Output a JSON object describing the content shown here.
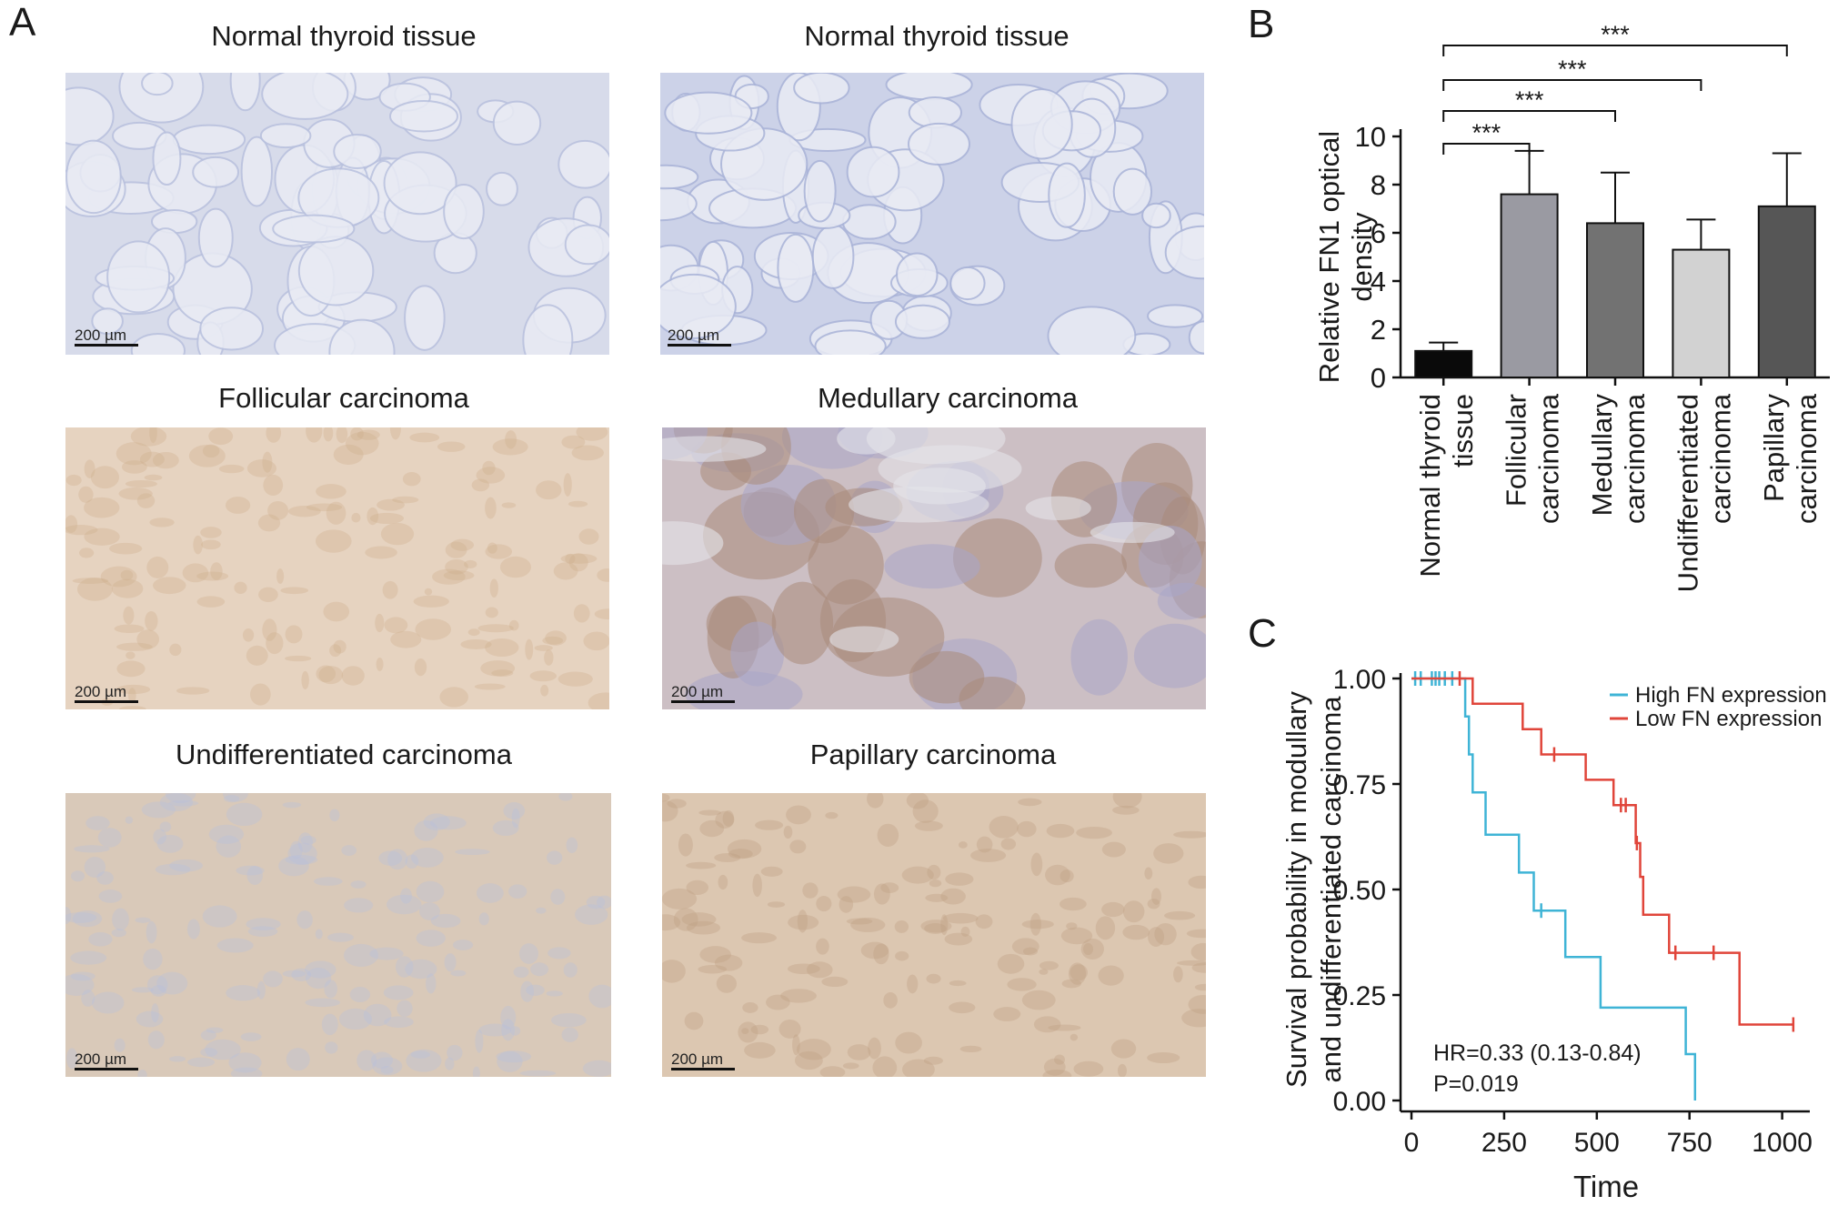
{
  "panel_labels": {
    "a": "A",
    "b": "B",
    "c": "C"
  },
  "micrographs": [
    {
      "id": "n1",
      "title": "Normal thyroid tissue",
      "scale": "200 µm",
      "stain": "#d7dbea",
      "accent": "#b9c1de",
      "pattern": "follicles"
    },
    {
      "id": "n2",
      "title": "Normal thyroid tissue",
      "scale": "200 µm",
      "stain": "#ccd2e8",
      "accent": "#aab4d8",
      "pattern": "follicles"
    },
    {
      "id": "fc",
      "title": "Follicular carcinoma",
      "scale": "200 µm",
      "stain": "#e6d3c0",
      "accent": "#cfae8c",
      "pattern": "diffuse"
    },
    {
      "id": "mc",
      "title": "Medullary carcinoma",
      "scale": "200 µm",
      "stain": "#ccbfc4",
      "accent": "#a98a7a",
      "pattern": "nests"
    },
    {
      "id": "uc",
      "title": "Undifferentiated carcinoma",
      "scale": "200 µm",
      "stain": "#d9c9b9",
      "accent": "#b8c0de",
      "pattern": "diffuse"
    },
    {
      "id": "pc",
      "title": "Papillary carcinoma",
      "scale": "200 µm",
      "stain": "#dcc7b1",
      "accent": "#bd9e80",
      "pattern": "diffuse"
    }
  ],
  "chart_data": [
    {
      "type": "bar",
      "title": "",
      "xlabel": "",
      "ylabel": "Relative FN1 optical density",
      "ylim": [
        0,
        10
      ],
      "yticks": [
        0,
        2,
        4,
        6,
        8,
        10
      ],
      "categories": [
        "Normal thyroid tissue",
        "Follicular carcinoma",
        "Medullary carcinoma",
        "Undifferentiated carcinoma",
        "Papillary carcinoma"
      ],
      "category_lines": [
        [
          "Normal thyroid",
          "tissue"
        ],
        [
          "Follicular",
          "carcinoma"
        ],
        [
          "Medullary",
          "carcinoma"
        ],
        [
          "Undifferentiated",
          "carcinoma"
        ],
        [
          "Papillary",
          "carcinoma"
        ]
      ],
      "values": [
        1.1,
        7.6,
        6.4,
        5.3,
        7.1
      ],
      "errors": [
        0.35,
        1.8,
        2.1,
        1.25,
        2.2
      ],
      "colors": [
        "#0a0a0a",
        "#9a9aa2",
        "#727272",
        "#d2d2d2",
        "#565656"
      ],
      "significance": [
        {
          "from": 0,
          "to": 1,
          "label": "***"
        },
        {
          "from": 0,
          "to": 2,
          "label": "***"
        },
        {
          "from": 0,
          "to": 3,
          "label": "***"
        },
        {
          "from": 0,
          "to": 4,
          "label": "***"
        }
      ],
      "grid": false
    },
    {
      "type": "line",
      "subtype": "kaplan-meier",
      "title": "",
      "xlabel": "Time",
      "ylabel": [
        "Survival probability in modullary",
        "and undifferentiated carcinoma"
      ],
      "xlim": [
        0,
        1050
      ],
      "ylim": [
        0,
        1
      ],
      "xticks": [
        0,
        250,
        500,
        750,
        1000
      ],
      "yticks": [
        0.0,
        0.25,
        0.5,
        0.75,
        1.0
      ],
      "ytick_labels": [
        "0.00",
        "0.25",
        "0.50",
        "0.75",
        "1.00"
      ],
      "legend_position": "top-right",
      "series": [
        {
          "name": "High FN expression",
          "color": "#3fb4d6",
          "steps": [
            [
              0,
              1.0
            ],
            [
              145,
              1.0
            ],
            [
              145,
              0.91
            ],
            [
              155,
              0.91
            ],
            [
              155,
              0.82
            ],
            [
              165,
              0.82
            ],
            [
              165,
              0.73
            ],
            [
              200,
              0.73
            ],
            [
              200,
              0.63
            ],
            [
              290,
              0.63
            ],
            [
              290,
              0.54
            ],
            [
              330,
              0.54
            ],
            [
              330,
              0.45
            ],
            [
              415,
              0.45
            ],
            [
              415,
              0.34
            ],
            [
              510,
              0.34
            ],
            [
              510,
              0.22
            ],
            [
              740,
              0.22
            ],
            [
              740,
              0.11
            ],
            [
              765,
              0.11
            ],
            [
              765,
              0.0
            ]
          ],
          "censored": [
            [
              10,
              1.0
            ],
            [
              25,
              1.0
            ],
            [
              55,
              1.0
            ],
            [
              65,
              1.0
            ],
            [
              75,
              1.0
            ],
            [
              90,
              1.0
            ],
            [
              110,
              1.0
            ],
            [
              350,
              0.45
            ]
          ]
        },
        {
          "name": "Low FN expression",
          "color": "#e0453a",
          "steps": [
            [
              0,
              1.0
            ],
            [
              165,
              1.0
            ],
            [
              165,
              0.94
            ],
            [
              300,
              0.94
            ],
            [
              300,
              0.88
            ],
            [
              350,
              0.88
            ],
            [
              350,
              0.82
            ],
            [
              470,
              0.82
            ],
            [
              470,
              0.76
            ],
            [
              545,
              0.76
            ],
            [
              545,
              0.7
            ],
            [
              605,
              0.7
            ],
            [
              605,
              0.61
            ],
            [
              617,
              0.61
            ],
            [
              617,
              0.53
            ],
            [
              625,
              0.53
            ],
            [
              625,
              0.44
            ],
            [
              695,
              0.44
            ],
            [
              695,
              0.35
            ],
            [
              885,
              0.35
            ],
            [
              885,
              0.18
            ],
            [
              1030,
              0.18
            ]
          ],
          "censored": [
            [
              130,
              1.0
            ],
            [
              385,
              0.82
            ],
            [
              565,
              0.7
            ],
            [
              578,
              0.7
            ],
            [
              608,
              0.61
            ],
            [
              712,
              0.35
            ],
            [
              815,
              0.35
            ],
            [
              1030,
              0.18
            ]
          ]
        }
      ],
      "annotations": [
        "HR=0.33 (0.13-0.84)",
        "P=0.019"
      ]
    }
  ]
}
